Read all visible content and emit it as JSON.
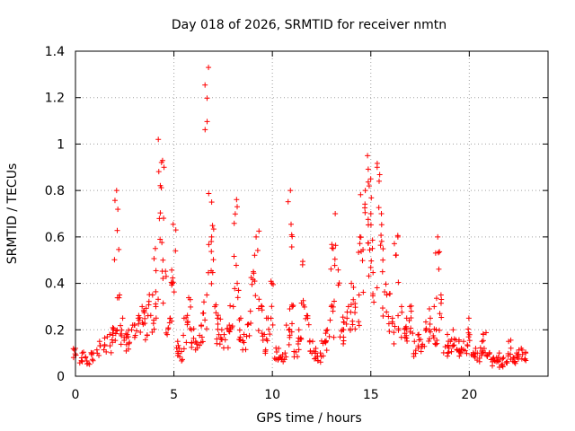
{
  "chart_data": {
    "type": "scatter",
    "title": "Day 018 of 2026, SRMTID for receiver nmtn",
    "xlabel": "GPS time / hours",
    "ylabel": "SRMTID / TECUs",
    "xlim": [
      0,
      24
    ],
    "ylim": [
      0,
      1.4
    ],
    "xticks": [
      0,
      5,
      10,
      15,
      20
    ],
    "xtick_labels": [
      "0",
      "5",
      "10",
      "15",
      "20"
    ],
    "yticks": [
      0,
      0.2,
      0.4,
      0.6,
      0.8,
      1.0,
      1.2,
      1.4
    ],
    "ytick_labels": [
      "0",
      "0.2",
      "0.4",
      "0.6",
      "0.8",
      "1",
      "1.2",
      "1.4"
    ],
    "grid": true,
    "marker": "+",
    "color": "#ff0000",
    "series": [
      {
        "name": "SRMTID",
        "x": [
          0.0,
          0.3,
          0.6,
          0.9,
          1.2,
          1.5,
          1.8,
          2.0,
          2.1,
          2.2,
          2.4,
          2.6,
          2.8,
          3.0,
          3.2,
          3.4,
          3.6,
          3.8,
          4.0,
          4.1,
          4.3,
          4.4,
          4.5,
          4.7,
          4.9,
          5.0,
          5.2,
          5.4,
          5.6,
          5.8,
          6.0,
          6.2,
          6.4,
          6.6,
          6.7,
          6.8,
          7.0,
          7.2,
          7.3,
          7.5,
          7.7,
          7.9,
          8.1,
          8.2,
          8.4,
          8.6,
          8.8,
          9.0,
          9.2,
          9.4,
          9.6,
          9.8,
          10.0,
          10.2,
          10.4,
          10.6,
          10.8,
          10.9,
          11.0,
          11.2,
          11.4,
          11.6,
          11.8,
          12.0,
          12.2,
          12.4,
          12.6,
          12.8,
          13.0,
          13.1,
          13.3,
          13.5,
          13.7,
          13.9,
          14.1,
          14.3,
          14.5,
          14.6,
          14.8,
          14.9,
          15.0,
          15.2,
          15.4,
          15.5,
          15.7,
          15.9,
          16.1,
          16.3,
          16.5,
          16.7,
          16.9,
          17.1,
          17.3,
          17.5,
          17.7,
          17.9,
          18.1,
          18.3,
          18.4,
          18.6,
          18.8,
          19.0,
          19.2,
          19.4,
          19.6,
          19.8,
          20.0,
          20.2,
          20.4,
          20.6,
          20.8,
          21.0,
          21.2,
          21.4,
          21.6,
          21.8,
          22.0,
          22.2,
          22.4,
          22.6,
          22.8
        ],
        "y": [
          0.12,
          0.1,
          0.08,
          0.1,
          0.15,
          0.17,
          0.18,
          0.2,
          0.8,
          0.35,
          0.25,
          0.18,
          0.2,
          0.22,
          0.25,
          0.3,
          0.28,
          0.35,
          0.3,
          0.55,
          1.02,
          0.9,
          0.5,
          0.25,
          0.4,
          0.63,
          0.15,
          0.12,
          0.25,
          0.33,
          0.2,
          0.15,
          0.22,
          0.35,
          1.33,
          0.6,
          0.75,
          0.3,
          0.25,
          0.2,
          0.22,
          0.3,
          0.73,
          0.4,
          0.25,
          0.18,
          0.28,
          0.45,
          0.6,
          0.3,
          0.18,
          0.25,
          0.4,
          0.12,
          0.08,
          0.1,
          0.22,
          0.8,
          0.3,
          0.15,
          0.2,
          0.48,
          0.25,
          0.15,
          0.12,
          0.1,
          0.15,
          0.2,
          0.3,
          0.55,
          0.7,
          0.2,
          0.25,
          0.3,
          0.4,
          0.35,
          0.6,
          0.8,
          0.95,
          0.7,
          0.85,
          0.55,
          0.9,
          0.7,
          0.45,
          0.35,
          0.25,
          0.6,
          0.3,
          0.2,
          0.25,
          0.3,
          0.15,
          0.18,
          0.2,
          0.25,
          0.3,
          0.2,
          0.6,
          0.35,
          0.18,
          0.15,
          0.2,
          0.15,
          0.12,
          0.15,
          0.25,
          0.12,
          0.1,
          0.15,
          0.18,
          0.1,
          0.08,
          0.1,
          0.07,
          0.08,
          0.15,
          0.08,
          0.1,
          0.12,
          0.1
        ]
      }
    ]
  }
}
